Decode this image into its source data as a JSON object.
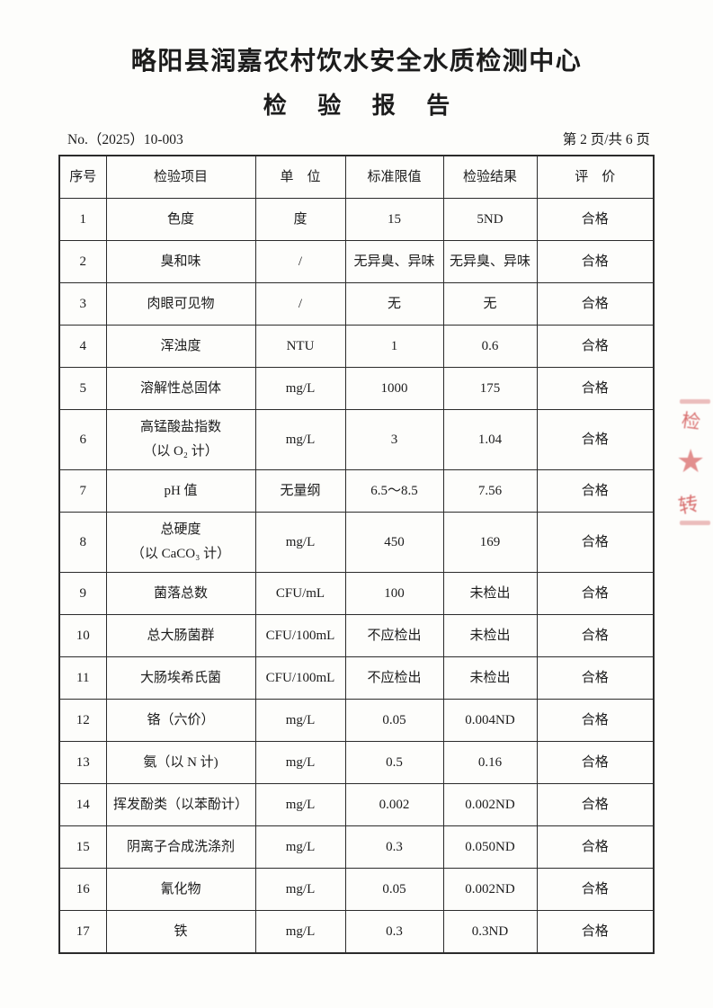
{
  "header": {
    "org_name": "略阳县润嘉农村饮水安全水质检测中心",
    "report_title": "检 验 报 告",
    "report_no": "No.（2025）10-003",
    "page_info": "第 2 页/共 6 页"
  },
  "table": {
    "columns": [
      "序号",
      "检验项目",
      "单　位",
      "标准限值",
      "检验结果",
      "评　价"
    ],
    "rows": [
      {
        "no": "1",
        "item": "色度",
        "unit": "度",
        "limit": "15",
        "result": "5ND",
        "evaluation": "合格"
      },
      {
        "no": "2",
        "item": "臭和味",
        "unit": "/",
        "limit": "无异臭、异味",
        "result": "无异臭、异味",
        "evaluation": "合格"
      },
      {
        "no": "3",
        "item": "肉眼可见物",
        "unit": "/",
        "limit": "无",
        "result": "无",
        "evaluation": "合格"
      },
      {
        "no": "4",
        "item": "浑浊度",
        "unit": "NTU",
        "limit": "1",
        "result": "0.6",
        "evaluation": "合格"
      },
      {
        "no": "5",
        "item": "溶解性总固体",
        "unit": "mg/L",
        "limit": "1000",
        "result": "175",
        "evaluation": "合格"
      },
      {
        "no": "6",
        "item": "高锰酸盐指数",
        "item2": "（以 O₂ 计）",
        "unit": "mg/L",
        "limit": "3",
        "result": "1.04",
        "evaluation": "合格"
      },
      {
        "no": "7",
        "item": "pH 值",
        "unit": "无量纲",
        "limit": "6.5～8.5",
        "result": "7.56",
        "evaluation": "合格"
      },
      {
        "no": "8",
        "item": "总硬度",
        "item2": "（以 CaCO₃ 计）",
        "unit": "mg/L",
        "limit": "450",
        "result": "169",
        "evaluation": "合格"
      },
      {
        "no": "9",
        "item": "菌落总数",
        "unit": "CFU/mL",
        "limit": "100",
        "result": "未检出",
        "evaluation": "合格"
      },
      {
        "no": "10",
        "item": "总大肠菌群",
        "unit": "CFU/100mL",
        "limit": "不应检出",
        "result": "未检出",
        "evaluation": "合格"
      },
      {
        "no": "11",
        "item": "大肠埃希氏菌",
        "unit": "CFU/100mL",
        "limit": "不应检出",
        "result": "未检出",
        "evaluation": "合格"
      },
      {
        "no": "12",
        "item": "铬（六价）",
        "unit": "mg/L",
        "limit": "0.05",
        "result": "0.004ND",
        "evaluation": "合格"
      },
      {
        "no": "13",
        "item": "氨（以 N 计)",
        "unit": "mg/L",
        "limit": "0.5",
        "result": "0.16",
        "evaluation": "合格"
      },
      {
        "no": "14",
        "item": "挥发酚类（以苯酚计）",
        "unit": "mg/L",
        "limit": "0.002",
        "result": "0.002ND",
        "evaluation": "合格"
      },
      {
        "no": "15",
        "item": "阴离子合成洗涤剂",
        "unit": "mg/L",
        "limit": "0.3",
        "result": "0.050ND",
        "evaluation": "合格"
      },
      {
        "no": "16",
        "item": "氰化物",
        "unit": "mg/L",
        "limit": "0.05",
        "result": "0.002ND",
        "evaluation": "合格"
      },
      {
        "no": "17",
        "item": "铁",
        "unit": "mg/L",
        "limit": "0.3",
        "result": "0.3ND",
        "evaluation": "合格"
      }
    ]
  },
  "seal": {
    "visible_char_top": "检",
    "visible_char_bottom": "转",
    "color": "#cf4b4b"
  }
}
